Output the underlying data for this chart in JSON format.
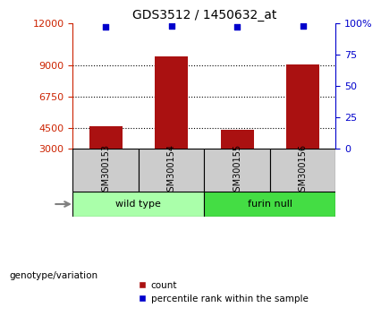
{
  "title": "GDS3512 / 1450632_at",
  "samples": [
    "GSM300153",
    "GSM300154",
    "GSM300155",
    "GSM300156"
  ],
  "counts": [
    4580,
    9650,
    4350,
    9020
  ],
  "percentiles": [
    97,
    98,
    97,
    98
  ],
  "groups": [
    {
      "label": "wild type",
      "indices": [
        0,
        1
      ],
      "color": "#aaffaa"
    },
    {
      "label": "furin null",
      "indices": [
        2,
        3
      ],
      "color": "#44dd44"
    }
  ],
  "bar_color": "#aa1111",
  "percentile_color": "#0000cc",
  "ylim_left": [
    3000,
    12000
  ],
  "yticks_left": [
    3000,
    4500,
    6750,
    9000,
    12000
  ],
  "ylim_right": [
    0,
    100
  ],
  "yticks_right": [
    0,
    25,
    50,
    75,
    100
  ],
  "ytick_labels_right": [
    "0",
    "25",
    "50",
    "75",
    "100%"
  ],
  "grid_lines": [
    4500,
    6750,
    9000
  ],
  "left_axis_color": "#cc2200",
  "right_axis_color": "#0000cc",
  "sample_box_color": "#cccccc",
  "background_color": "#ffffff",
  "bar_width": 0.5,
  "legend_count_label": "count",
  "legend_percentile_label": "percentile rank within the sample",
  "group_label_prefix": "genotype/variation"
}
